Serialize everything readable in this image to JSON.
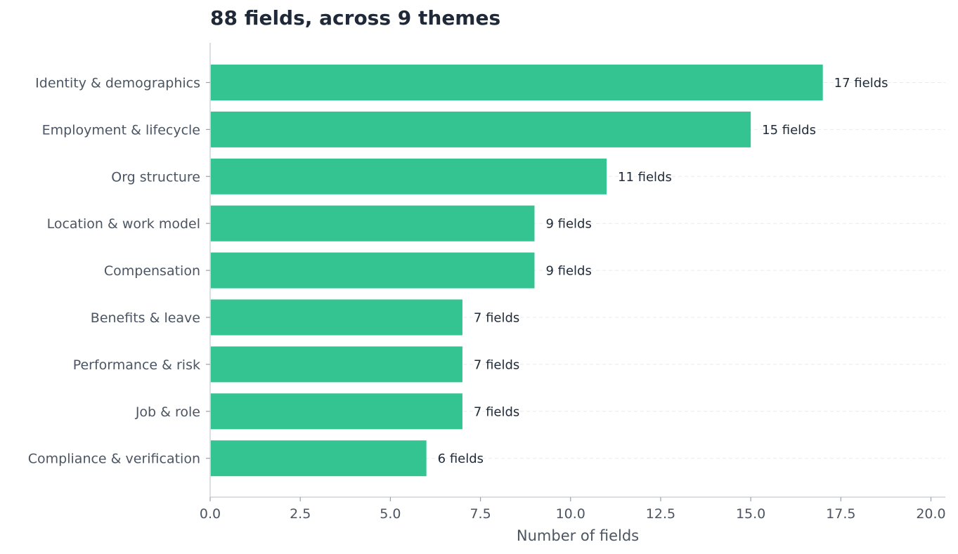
{
  "chart_data": {
    "type": "bar",
    "orientation": "horizontal",
    "title": "88 fields, across 9 themes",
    "xlabel": "Number of fields",
    "ylabel": "",
    "xlim": [
      0,
      20
    ],
    "xticks": [
      "0.0",
      "2.5",
      "5.0",
      "7.5",
      "10.0",
      "12.5",
      "15.0",
      "17.5",
      "20.0"
    ],
    "categories": [
      "Identity & demographics",
      "Employment & lifecycle",
      "Org structure",
      "Location & work model",
      "Compensation",
      "Benefits & leave",
      "Performance & risk",
      "Job & role",
      "Compliance & verification"
    ],
    "values": [
      17,
      15,
      11,
      9,
      9,
      7,
      7,
      7,
      6
    ],
    "data_labels": [
      "17 fields",
      "15 fields",
      "11 fields",
      "9 fields",
      "9 fields",
      "7 fields",
      "7 fields",
      "7 fields",
      "6 fields"
    ],
    "grid": "horizontal dashed",
    "bar_color": "#34c492",
    "axis_color": "#cfd4da"
  }
}
